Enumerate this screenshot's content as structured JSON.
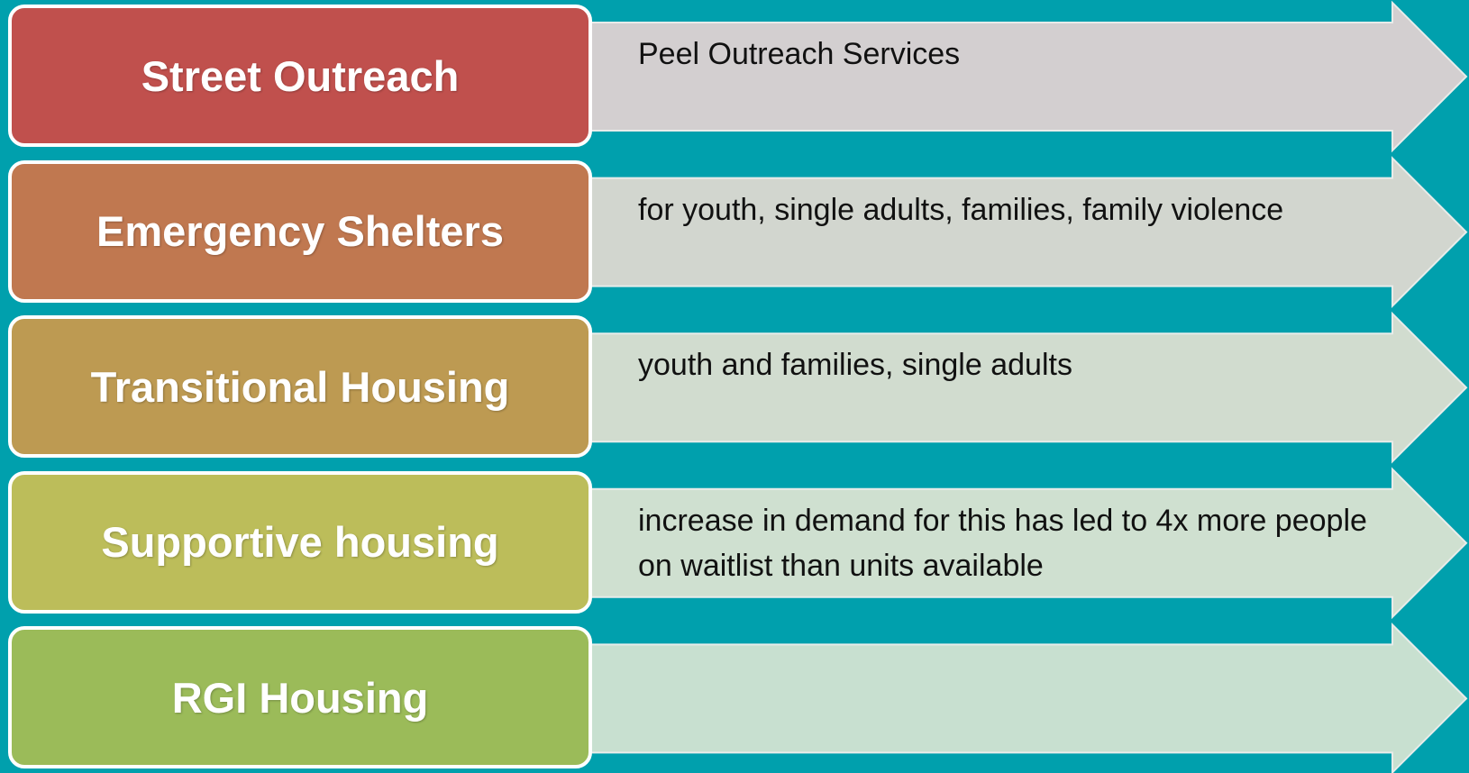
{
  "rows": [
    {
      "label": "Street Outreach",
      "description": "Peel Outreach Services"
    },
    {
      "label": "Emergency Shelters",
      "description": "for youth, single adults, families, family violence"
    },
    {
      "label": "Transitional Housing",
      "description": "youth and families, single adults"
    },
    {
      "label": "Supportive housing",
      "description": "increase in demand for this has led to 4x more people on waitlist than units available"
    },
    {
      "label": "RGI Housing"
    }
  ]
}
